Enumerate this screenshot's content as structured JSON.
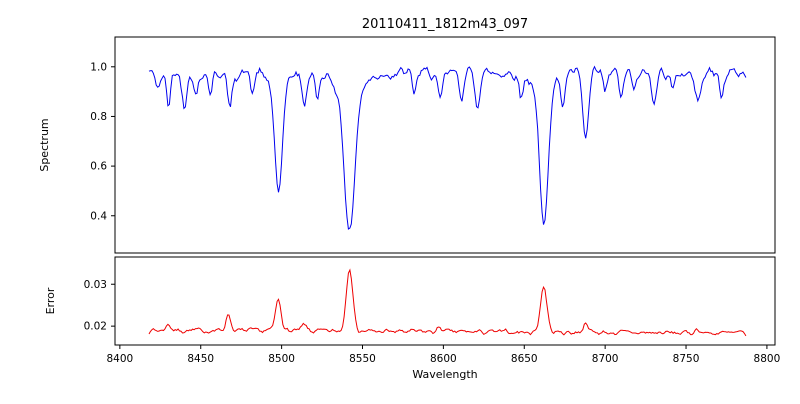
{
  "title": "20110411_1812m43_097",
  "axes": {
    "xlabel": "Wavelength",
    "top_ylabel": "Spectrum",
    "bottom_ylabel": "Error",
    "xlim": [
      8397,
      8805
    ],
    "top_ylim": [
      0.25,
      1.12
    ],
    "bottom_ylim": [
      0.0155,
      0.0365
    ],
    "x_ticks": [
      8400,
      8450,
      8500,
      8550,
      8600,
      8650,
      8700,
      8750,
      8800
    ],
    "x_tick_labels": [
      "8400",
      "8450",
      "8500",
      "8550",
      "8600",
      "8650",
      "8700",
      "8750",
      "8800"
    ],
    "top_y_ticks": [
      0.4,
      0.6,
      0.8,
      1.0
    ],
    "top_y_tick_labels": [
      "0.4",
      "0.6",
      "0.8",
      "1.0"
    ],
    "bottom_y_ticks": [
      0.02,
      0.03
    ],
    "bottom_y_tick_labels": [
      "0.02",
      "0.03"
    ]
  },
  "colors": {
    "spectrum": "#0000ee",
    "error": "#ee0000",
    "axis": "#000000"
  },
  "chart_data": [
    {
      "type": "line",
      "name": "Spectrum",
      "panel": "top",
      "color": "#0000ee",
      "x_range": [
        8418,
        8787
      ],
      "sample_step": 0.9,
      "continuum_level": 0.975,
      "noise_amplitude": 0.035,
      "noise_seed": 42,
      "absorption_lines": [
        {
          "center": 8424,
          "depth": 0.06,
          "width": 1.5
        },
        {
          "center": 8430,
          "depth": 0.13,
          "width": 1.2
        },
        {
          "center": 8440,
          "depth": 0.12,
          "width": 1.5
        },
        {
          "center": 8447,
          "depth": 0.1,
          "width": 1.2
        },
        {
          "center": 8456,
          "depth": 0.08,
          "width": 1.2
        },
        {
          "center": 8468,
          "depth": 0.14,
          "width": 1.5
        },
        {
          "center": 8482,
          "depth": 0.08,
          "width": 1.2
        },
        {
          "center": 8498,
          "depth": 0.44,
          "width": 2.2
        },
        {
          "center": 8498,
          "depth": 0.06,
          "width": 5.0
        },
        {
          "center": 8514,
          "depth": 0.12,
          "width": 1.5
        },
        {
          "center": 8522,
          "depth": 0.1,
          "width": 1.2
        },
        {
          "center": 8542,
          "depth": 0.55,
          "width": 3.0
        },
        {
          "center": 8542,
          "depth": 0.1,
          "width": 8.0
        },
        {
          "center": 8582,
          "depth": 0.08,
          "width": 1.2
        },
        {
          "center": 8598,
          "depth": 0.12,
          "width": 1.5
        },
        {
          "center": 8611,
          "depth": 0.1,
          "width": 1.2
        },
        {
          "center": 8621,
          "depth": 0.12,
          "width": 1.5
        },
        {
          "center": 8648,
          "depth": 0.1,
          "width": 1.2
        },
        {
          "center": 8662,
          "depth": 0.54,
          "width": 2.5
        },
        {
          "center": 8662,
          "depth": 0.08,
          "width": 6.0
        },
        {
          "center": 8674,
          "depth": 0.12,
          "width": 1.2
        },
        {
          "center": 8688,
          "depth": 0.27,
          "width": 1.8
        },
        {
          "center": 8700,
          "depth": 0.08,
          "width": 1.2
        },
        {
          "center": 8710,
          "depth": 0.1,
          "width": 1.2
        },
        {
          "center": 8718,
          "depth": 0.08,
          "width": 1.2
        },
        {
          "center": 8730,
          "depth": 0.1,
          "width": 1.5
        },
        {
          "center": 8742,
          "depth": 0.08,
          "width": 1.2
        },
        {
          "center": 8757,
          "depth": 0.12,
          "width": 1.5
        },
        {
          "center": 8772,
          "depth": 0.1,
          "width": 1.2
        }
      ]
    },
    {
      "type": "line",
      "name": "Error",
      "panel": "bottom",
      "color": "#ee0000",
      "x_range": [
        8418,
        8787
      ],
      "sample_step": 0.9,
      "baseline_start": 0.019,
      "baseline_end": 0.0183,
      "noise_amplitude": 0.0009,
      "noise_seed": 7,
      "peaks": [
        {
          "center": 8430,
          "height": 0.0015,
          "width": 1.5
        },
        {
          "center": 8467,
          "height": 0.004,
          "width": 1.5
        },
        {
          "center": 8498,
          "height": 0.0075,
          "width": 1.8
        },
        {
          "center": 8514,
          "height": 0.0015,
          "width": 1.5
        },
        {
          "center": 8542,
          "height": 0.0155,
          "width": 2.0
        },
        {
          "center": 8598,
          "height": 0.001,
          "width": 1.5
        },
        {
          "center": 8662,
          "height": 0.011,
          "width": 2.0
        },
        {
          "center": 8688,
          "height": 0.0025,
          "width": 1.5
        },
        {
          "center": 8757,
          "height": 0.001,
          "width": 1.5
        }
      ]
    }
  ]
}
